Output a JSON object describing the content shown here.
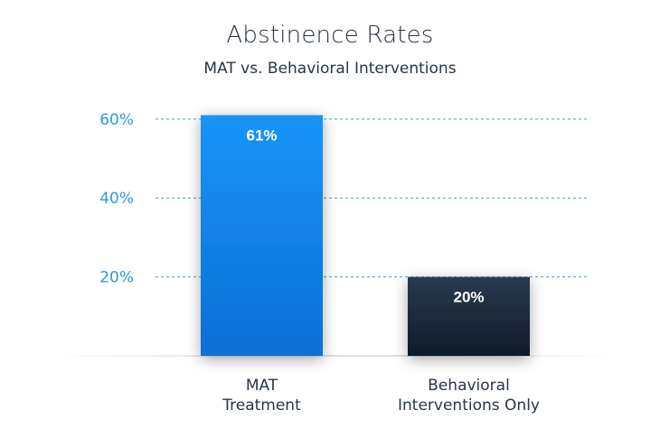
{
  "chart_data": {
    "type": "bar",
    "title": "Abstinence Rates",
    "subtitle": "MAT vs. Behavioral Interventions",
    "xlabel": "",
    "ylabel": "",
    "categories": [
      "MAT Treatment",
      "Behavioral Interventions Only"
    ],
    "category_lines": [
      [
        "MAT",
        "Treatment"
      ],
      [
        "Behavioral",
        "Interventions Only"
      ]
    ],
    "values": [
      61,
      20
    ],
    "value_labels": [
      "61%",
      "20%"
    ],
    "y_ticks": [
      20,
      40,
      60
    ],
    "y_tick_labels": [
      "20%",
      "40%",
      "60%"
    ],
    "ylim": [
      0,
      65
    ],
    "grid": true,
    "legend": "none",
    "colors": {
      "bar_1_top": "#1a94f7",
      "bar_1_bottom": "#0a6fd6",
      "bar_2_top": "#2a3a4d",
      "bar_2_bottom": "#0f1b29",
      "grid": "#3aa0e0",
      "tick_label": "#2a9be0",
      "value_label": "#ffffff"
    }
  }
}
